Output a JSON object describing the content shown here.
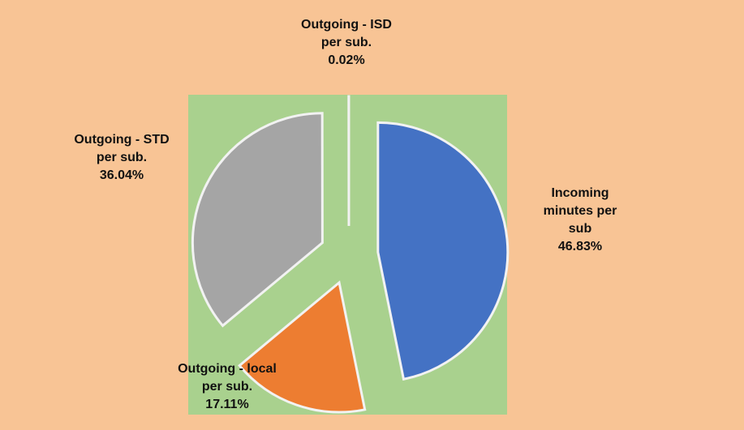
{
  "chart_data": {
    "type": "pie",
    "categories": [
      "Incoming minutes per sub",
      "Outgoing - local per sub.",
      "Outgoing - STD per sub.",
      "Outgoing - ISD per sub."
    ],
    "values": [
      46.83,
      17.11,
      36.04,
      0.02
    ],
    "value_labels": [
      "46.83%",
      "17.11%",
      "36.04%",
      "0.02%"
    ],
    "colors": [
      "#4472c4",
      "#ed7d31",
      "#a5a5a5",
      "#ffc000"
    ]
  }
}
